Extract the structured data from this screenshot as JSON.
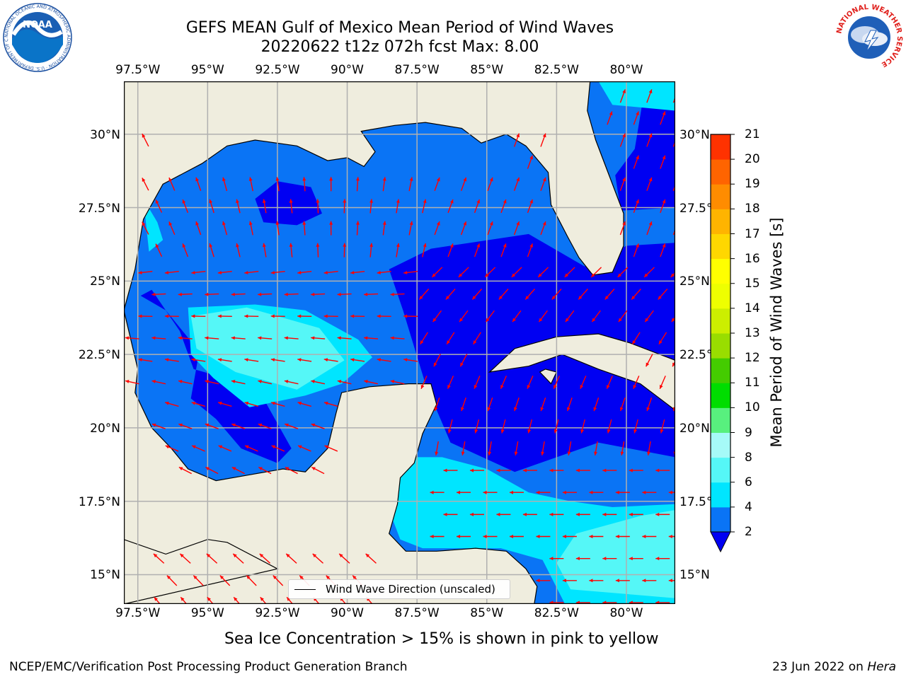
{
  "title": {
    "line1": "GEFS MEAN Gulf of Mexico Mean Period of Wind Waves",
    "line2": "20220622 t12z 072h fcst   Max: 8.00"
  },
  "axes": {
    "longitude_labels": [
      "97.5°W",
      "95°W",
      "92.5°W",
      "90°W",
      "87.5°W",
      "85°W",
      "82.5°W",
      "80°W"
    ],
    "latitude_labels": [
      "30°N",
      "27.5°N",
      "25°N",
      "22.5°N",
      "20°N",
      "17.5°N",
      "15°N"
    ]
  },
  "map": {
    "lon_range": [
      -98,
      -78.25
    ],
    "lat_range": [
      14,
      31.8
    ],
    "land_color": "#efedde",
    "coast_color": "#000000",
    "grid_color": "#b0b0b0",
    "arrow_color": "#ff0000"
  },
  "colorbar": {
    "label": "Mean Period of Wind Waves [s]",
    "ticks": [
      "2",
      "4",
      "6",
      "8",
      "9",
      "10",
      "11",
      "12",
      "13",
      "14",
      "15",
      "16",
      "17",
      "18",
      "19",
      "20",
      "21"
    ],
    "colors": [
      "#0a74f5",
      "#00e5ff",
      "#55f7f7",
      "#a6faf8",
      "#58f07e",
      "#00dd00",
      "#44cc00",
      "#99dd00",
      "#ccee00",
      "#eeff00",
      "#ffff00",
      "#ffd700",
      "#ffb400",
      "#ff8c00",
      "#ff6400",
      "#ff3200"
    ],
    "extend_color": "#0000f2"
  },
  "legend": {
    "label": "Wind Wave Direction (unscaled)"
  },
  "sea_ice_note": "Sea Ice Concentration > 15% is shown in pink to yellow",
  "footer": {
    "left": "NCEP/EMC/Verification Post Processing Product Generation Branch",
    "right_date": "23 Jun 2022 on ",
    "right_host": "Hera"
  },
  "logos": {
    "left": {
      "text": "NOAA",
      "ring_text": "NATIONAL OCEANIC AND ATMOSPHERIC ADMINISTRATION · U.S. DEPARTMENT OF COMMERCE"
    },
    "right": {
      "ring_text": "NATIONAL WEATHER SERVICE"
    }
  }
}
